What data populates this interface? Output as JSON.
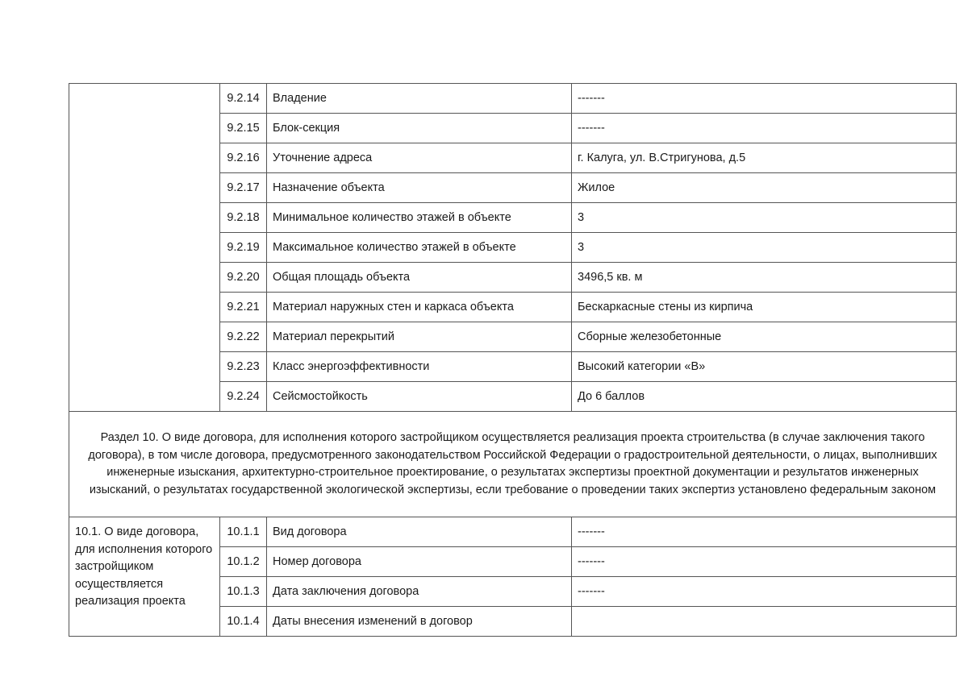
{
  "rows_9_2": [
    {
      "num": "9.2.14",
      "label": "Владение",
      "value": "-------"
    },
    {
      "num": "9.2.15",
      "label": "Блок-секция",
      "value": "-------"
    },
    {
      "num": "9.2.16",
      "label": "Уточнение адреса",
      "value": "г. Калуга, ул. В.Стригунова, д.5"
    },
    {
      "num": "9.2.17",
      "label": "Назначение объекта",
      "value": "Жилое"
    },
    {
      "num": "9.2.18",
      "label": "Минимальное количество этажей в объекте",
      "value": "3"
    },
    {
      "num": "9.2.19",
      "label": "Максимальное количество этажей в объекте",
      "value": "3"
    },
    {
      "num": "9.2.20",
      "label": "Общая площадь объекта",
      "value": "3496,5 кв. м"
    },
    {
      "num": "9.2.21",
      "label": "Материал наружных стен и каркаса объекта",
      "value": "Бескаркасные стены из кирпича"
    },
    {
      "num": "9.2.22",
      "label": "Материал перекрытий",
      "value": "Сборные железобетонные"
    },
    {
      "num": "9.2.23",
      "label": "Класс энергоэффективности",
      "value": "Высокий категории «В»"
    },
    {
      "num": "9.2.24",
      "label": "Сейсмостойкость",
      "value": "До 6 баллов"
    }
  ],
  "section10": {
    "title": "Раздел 10. О виде договора, для исполнения которого застройщиком осуществляется реализация проекта строительства (в случае заключения такого договора), в том числе договора, предусмотренного законодательством Российской Федерации о градостроительной деятельности, о лицах, выполнивших инженерные изыскания, архитектурно-строительное проектирование, о результатах экспертизы проектной документации и результатов инженерных изысканий, о результатах государственной экологической экспертизы, если требование о проведении таких экспертиз установлено федеральным законом",
    "subsection_label": "10.1. О виде договора, для исполнения которого застройщиком осуществляется реализация проекта",
    "rows": [
      {
        "num": "10.1.1",
        "label": "Вид договора",
        "value": "-------"
      },
      {
        "num": "10.1.2",
        "label": "Номер договора",
        "value": "-------"
      },
      {
        "num": "10.1.3",
        "label": "Дата заключения договора",
        "value": "-------"
      },
      {
        "num": "10.1.4",
        "label": "Даты внесения изменений в договор",
        "value": ""
      }
    ]
  }
}
